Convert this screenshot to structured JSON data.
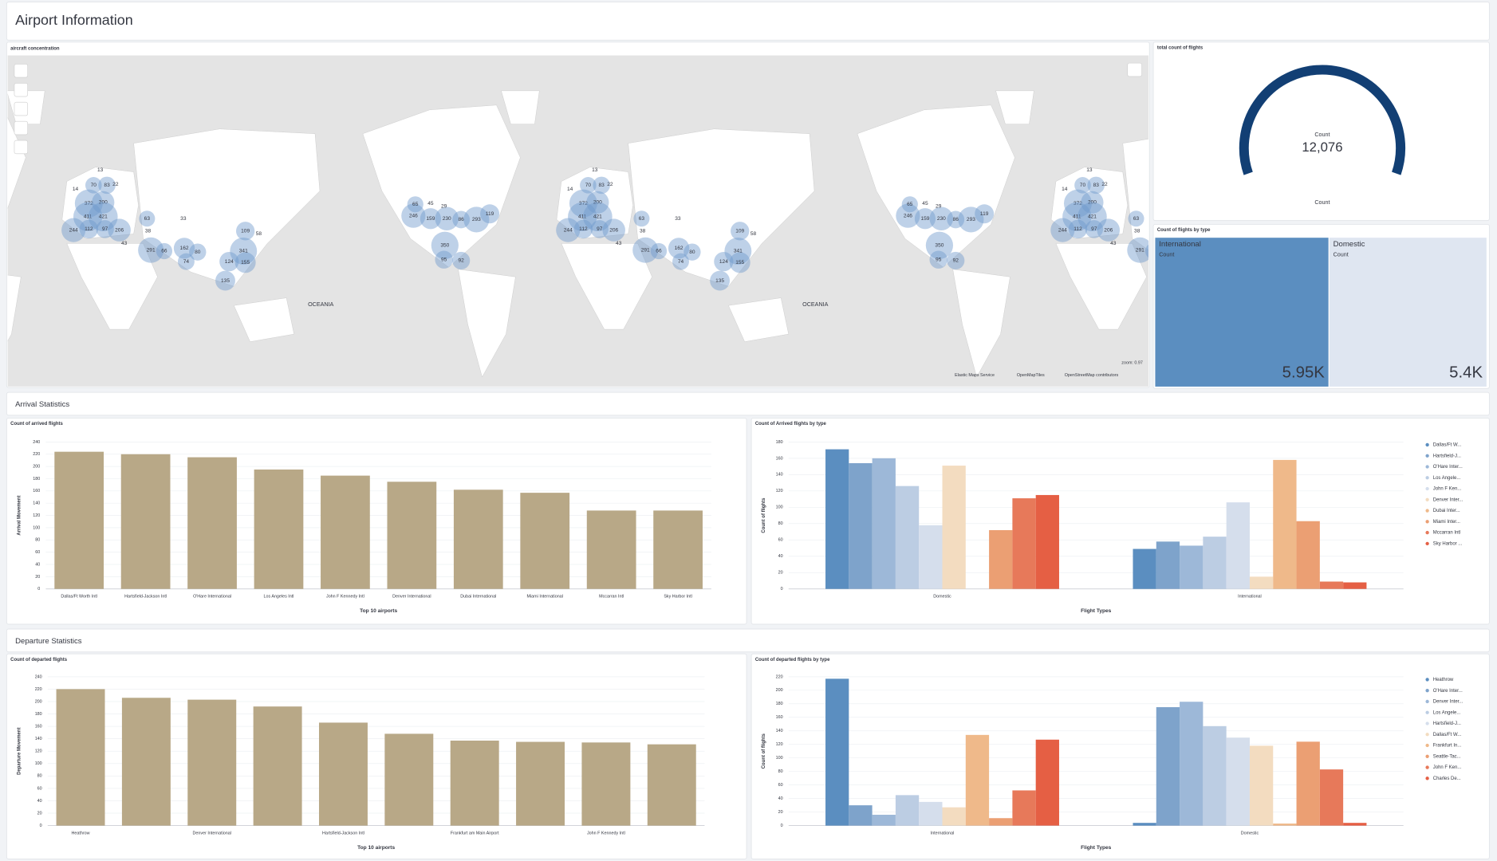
{
  "header": {
    "title": "Airport Information"
  },
  "sections": [
    "Arrival Statistics",
    "Departure Statistics"
  ],
  "map": {
    "title": "aircraft concentration",
    "region_label": "OCEANIA",
    "counts": [
      372,
      200,
      411,
      421,
      244,
      112,
      97,
      206,
      63,
      38,
      291,
      66,
      162,
      80,
      341,
      109,
      58,
      124,
      155,
      135,
      74,
      246,
      159,
      230,
      86,
      293,
      119,
      350,
      92,
      95,
      13,
      70,
      83,
      22,
      14,
      65,
      45,
      29,
      33,
      43
    ],
    "attribution": [
      "Elastic Maps Service",
      "OpenMapTiles",
      "OpenStreetMap contributors"
    ],
    "zoom": "zoom: 0.97"
  },
  "chart_data": [
    {
      "type": "bar",
      "title": "Count of arrived flights",
      "x_label": "Top 10 airports",
      "y_label": "Arrival Movement",
      "categories": [
        "Dallas/Ft Worth Intl",
        "Hartsfield-Jackson Intl",
        "O'Hare International",
        "Los Angeles Intl",
        "John F Kennedy Intl",
        "Denver International",
        "Dubai International",
        "Miami International",
        "Mccarran Intl",
        "Sky Harbor Intl"
      ],
      "values": [
        224,
        220,
        215,
        195,
        185,
        175,
        162,
        157,
        128,
        128
      ],
      "color": "#b8a887",
      "ylim": [
        0,
        240
      ],
      "yticks": [
        0,
        20,
        40,
        60,
        80,
        100,
        120,
        140,
        160,
        180,
        200,
        220,
        240
      ],
      "grid": true
    },
    {
      "type": "bar",
      "title": "Count of Arrived flights by type",
      "x_label": "Flight Types",
      "y_label": "Count of flights",
      "categories": [
        "Domestic",
        "International"
      ],
      "series": [
        {
          "name": "Dallas/Ft W...",
          "color": "#5b8ec0",
          "values": [
            171,
            49
          ]
        },
        {
          "name": "Hartsfield-J...",
          "color": "#7ea3cb",
          "values": [
            154,
            58
          ]
        },
        {
          "name": "O'Hare Inter...",
          "color": "#9db8d8",
          "values": [
            160,
            53
          ]
        },
        {
          "name": "Los Angele...",
          "color": "#bccde3",
          "values": [
            126,
            64
          ]
        },
        {
          "name": "John F Ken...",
          "color": "#d5deec",
          "values": [
            78,
            106
          ]
        },
        {
          "name": "Denver Inter...",
          "color": "#f3dcc0",
          "values": [
            151,
            15
          ]
        },
        {
          "name": "Dubai Inter...",
          "color": "#efb98a",
          "values": [
            0,
            158
          ]
        },
        {
          "name": "Miami Inter...",
          "color": "#eb9f73",
          "values": [
            72,
            83
          ]
        },
        {
          "name": "Mccarran Intl",
          "color": "#e7795a",
          "values": [
            111,
            9
          ]
        },
        {
          "name": "Sky Harbor ...",
          "color": "#e55f44",
          "values": [
            115,
            8
          ]
        }
      ],
      "ylim": [
        0,
        180
      ],
      "yticks": [
        0,
        20,
        40,
        60,
        80,
        100,
        120,
        140,
        160,
        180
      ],
      "grid": true
    },
    {
      "type": "bar",
      "title": "Count of departed flights",
      "x_label": "Top 10 airports",
      "y_label": "Departure Movement",
      "categories": [
        "Heathrow",
        null,
        "Denver International",
        null,
        "Hartsfield-Jackson Intl",
        null,
        "Frankfurt am Main Airport",
        null,
        "John F Kennedy Intl",
        null
      ],
      "values": [
        220,
        206,
        203,
        192,
        166,
        148,
        137,
        135,
        134,
        131
      ],
      "color": "#b8a887",
      "ylim": [
        0,
        240
      ],
      "yticks": [
        0,
        20,
        40,
        60,
        80,
        100,
        120,
        140,
        160,
        180,
        200,
        220,
        240
      ],
      "grid": true
    },
    {
      "type": "bar",
      "title": "Count of departed flights by type",
      "x_label": "Flight Types",
      "y_label": "Count of flights",
      "categories": [
        "International",
        "Domestic"
      ],
      "series": [
        {
          "name": "Heathrow",
          "color": "#5b8ec0",
          "values": [
            217,
            4
          ]
        },
        {
          "name": "O'Hare Inter...",
          "color": "#7ea3cb",
          "values": [
            30,
            175
          ]
        },
        {
          "name": "Denver Inter...",
          "color": "#9db8d8",
          "values": [
            16,
            183
          ]
        },
        {
          "name": "Los Angele...",
          "color": "#bccde3",
          "values": [
            45,
            147
          ]
        },
        {
          "name": "Hartsfield-J...",
          "color": "#d5deec",
          "values": [
            35,
            130
          ]
        },
        {
          "name": "Dallas/Ft W...",
          "color": "#f3dcc0",
          "values": [
            27,
            118
          ]
        },
        {
          "name": "Frankfurt In...",
          "color": "#efb98a",
          "values": [
            134,
            3
          ]
        },
        {
          "name": "Seattle-Tac...",
          "color": "#eb9f73",
          "values": [
            11,
            124
          ]
        },
        {
          "name": "John F Ken...",
          "color": "#e7795a",
          "values": [
            52,
            83
          ]
        },
        {
          "name": "Charles De...",
          "color": "#e55f44",
          "values": [
            127,
            4
          ]
        }
      ],
      "ylim": [
        0,
        220
      ],
      "yticks": [
        0,
        20,
        40,
        60,
        80,
        100,
        120,
        140,
        160,
        180,
        200,
        220
      ],
      "grid": true
    },
    {
      "type": "gauge",
      "title": "total count of flights",
      "value": 12076,
      "value_label": "12,076",
      "label": "Count",
      "sublabel": "Count",
      "color": "#123f74"
    },
    {
      "type": "treemap",
      "title": "Count of flights by type",
      "categories": [
        "International",
        "Domestic"
      ],
      "values": [
        5950,
        5400
      ],
      "value_labels": [
        "5.95K",
        "5.4K"
      ],
      "metric": "Count",
      "colors": [
        "#5b8ec0",
        "#dfe6f1"
      ]
    }
  ]
}
